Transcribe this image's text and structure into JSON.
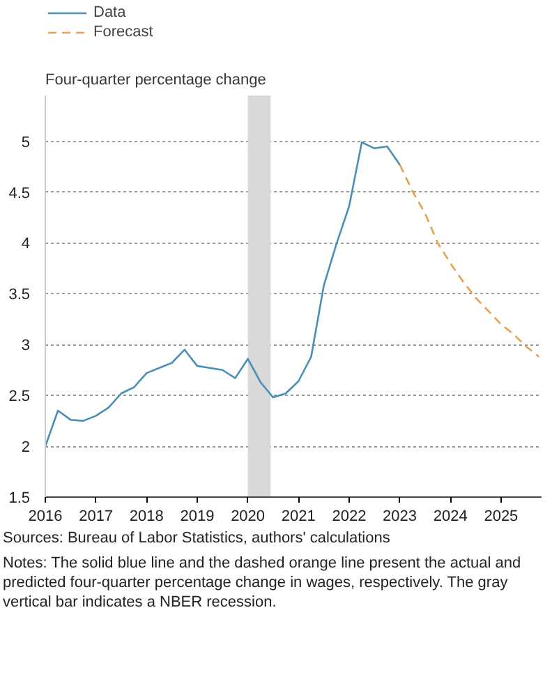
{
  "chart_data": {
    "type": "line",
    "ylabel": "Four-quarter percentage change",
    "series": [
      {
        "name": "Data",
        "color": "#4a8fb5",
        "line_style": "solid",
        "x": [
          2016.0,
          2016.25,
          2016.5,
          2016.75,
          2017.0,
          2017.25,
          2017.5,
          2017.75,
          2018.0,
          2018.25,
          2018.5,
          2018.75,
          2019.0,
          2019.25,
          2019.5,
          2019.75,
          2020.0,
          2020.25,
          2020.5,
          2020.75,
          2021.0,
          2021.25,
          2021.5,
          2021.75,
          2022.0,
          2022.25,
          2022.5,
          2022.75,
          2023.0
        ],
        "values": [
          2.0,
          2.35,
          2.26,
          2.25,
          2.3,
          2.38,
          2.52,
          2.58,
          2.72,
          2.77,
          2.82,
          2.95,
          2.79,
          2.77,
          2.75,
          2.67,
          2.86,
          2.63,
          2.48,
          2.52,
          2.64,
          2.88,
          3.58,
          3.99,
          4.36,
          4.99,
          4.93,
          4.95,
          4.77
        ]
      },
      {
        "name": "Forecast",
        "color": "#e8a050",
        "line_style": "dashed",
        "x": [
          2023.0,
          2023.25,
          2023.5,
          2023.75,
          2024.0,
          2024.25,
          2024.5,
          2024.75,
          2025.0,
          2025.25,
          2025.5,
          2025.75
        ],
        "values": [
          4.77,
          4.51,
          4.29,
          4.0,
          3.8,
          3.62,
          3.46,
          3.33,
          3.2,
          3.1,
          2.98,
          2.88
        ]
      }
    ],
    "xlim": [
      2016,
      2025.8
    ],
    "xticks": [
      2016,
      2017,
      2018,
      2019,
      2020,
      2021,
      2022,
      2023,
      2024,
      2025
    ],
    "ylim": [
      1.5,
      5.45
    ],
    "yticks": [
      1.5,
      2,
      2.5,
      3,
      3.5,
      4,
      4.5,
      5
    ],
    "grid": "y",
    "legend": "top left",
    "bands": [
      {
        "axis": "x",
        "from": 2020.0,
        "to": 2020.45,
        "color": "#d9d9d9"
      }
    ],
    "annotations": [
      "Sources: Bureau of Labor Statistics, authors' calculations",
      "Notes: The solid blue line and the dashed orange line present the actual and predicted four-quarter percentage change in wages, respectively. The gray vertical bar indicates a NBER recession."
    ]
  }
}
